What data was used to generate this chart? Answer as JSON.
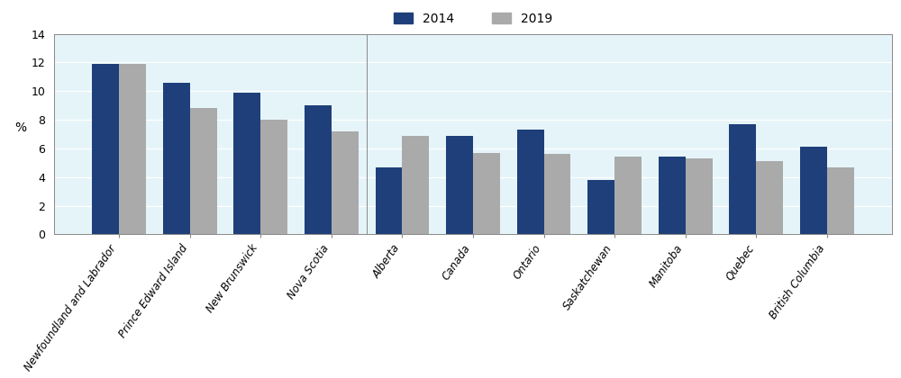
{
  "categories": [
    "Newfoundland and Labrador",
    "Prince Edward Island",
    "New Brunswick",
    "Nova Scotia",
    "Alberta",
    "Canada",
    "Ontario",
    "Saskatchewan",
    "Manitoba",
    "Quebec",
    "British Columbia"
  ],
  "values_2014": [
    11.9,
    10.6,
    9.9,
    9.0,
    4.7,
    6.9,
    7.3,
    3.8,
    5.4,
    7.7,
    6.1
  ],
  "values_2019": [
    11.9,
    8.8,
    8.0,
    7.2,
    6.9,
    5.7,
    5.6,
    5.4,
    5.3,
    5.1,
    4.7
  ],
  "color_2014": "#1F3F7A",
  "color_2019": "#AAAAAA",
  "ylabel": "%",
  "ylim": [
    0,
    14
  ],
  "yticks": [
    0,
    2,
    4,
    6,
    8,
    10,
    12,
    14
  ],
  "legend_2014": "2014",
  "legend_2019": "2019",
  "bg_color": "#E5F4F8",
  "header_bg": "#CCCCCC",
  "grid_color": "#FFFFFF",
  "bar_width": 0.38,
  "tick_rotation": 55,
  "fontsize_ticks": 8.5
}
